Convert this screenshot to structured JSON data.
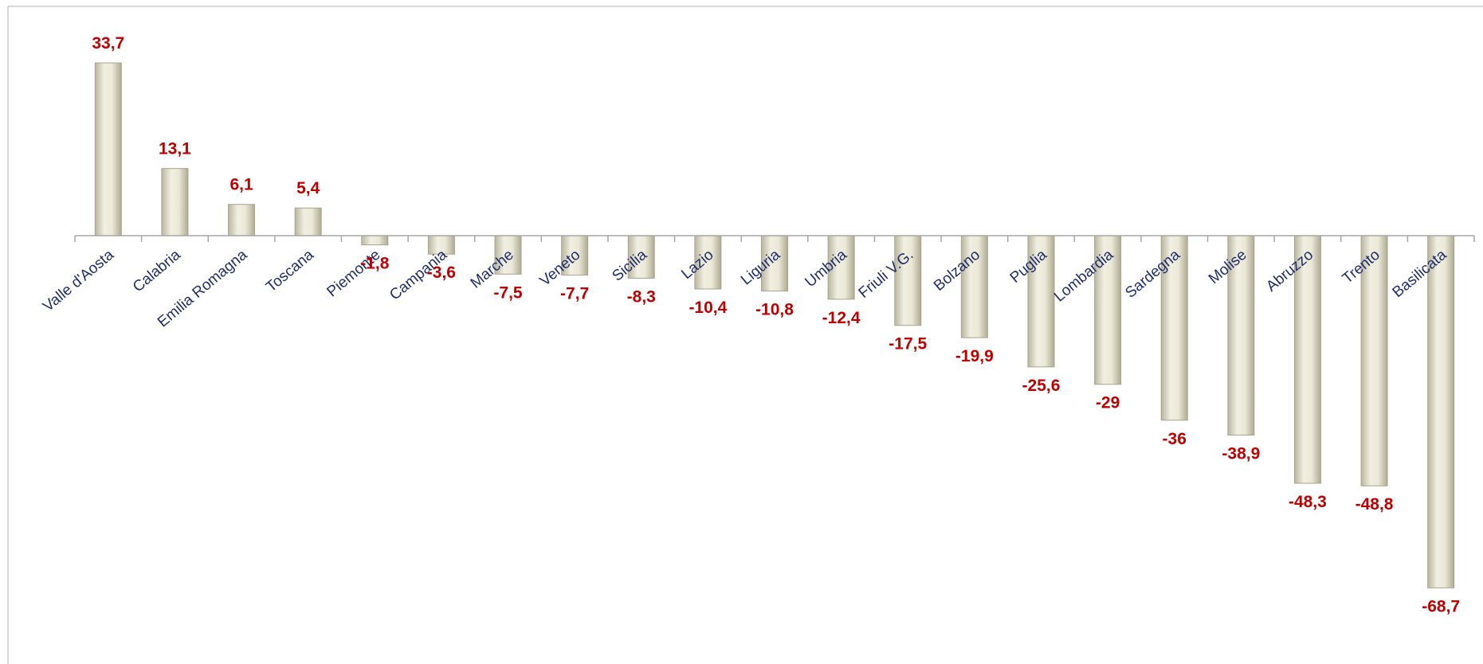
{
  "chart_data": {
    "type": "bar",
    "categories": [
      "Valle d'Aosta",
      "Calabria",
      "Emilia Romagna",
      "Toscana",
      "Piemonte",
      "Campania",
      "Marche",
      "Veneto",
      "Sicilia",
      "Lazio",
      "Liguria",
      "Umbria",
      "Friuli V.G.",
      "Bolzano",
      "Puglia",
      "Lombardia",
      "Sardegna",
      "Molise",
      "Abruzzo",
      "Trento",
      "Basilicata"
    ],
    "values": [
      33.7,
      13.1,
      6.1,
      5.4,
      -1.8,
      -3.6,
      -7.5,
      -7.7,
      -8.3,
      -10.4,
      -10.8,
      -12.4,
      -17.5,
      -19.9,
      -25.6,
      -29,
      -36,
      -38.9,
      -48.3,
      -48.8,
      -68.7
    ],
    "value_labels": [
      "33,7",
      "13,1",
      "6,1",
      "5,4",
      "-1,8",
      "-3,6",
      "-7,5",
      "-7,7",
      "-8,3",
      "-10,4",
      "-10,8",
      "-12,4",
      "-17,5",
      "-19,9",
      "-25,6",
      "-29",
      "-36",
      "-38,9",
      "-48,3",
      "-48,8",
      "-68,7"
    ],
    "ylim": [
      -80,
      40
    ],
    "grid": false,
    "legend": "none",
    "colors": {
      "bar_fill": "#e4e1cf",
      "bar_edge": "#a8a48e",
      "value_label": "#c00000",
      "category_label": "#1f2d6b",
      "axis": "#a6a6a6"
    }
  }
}
